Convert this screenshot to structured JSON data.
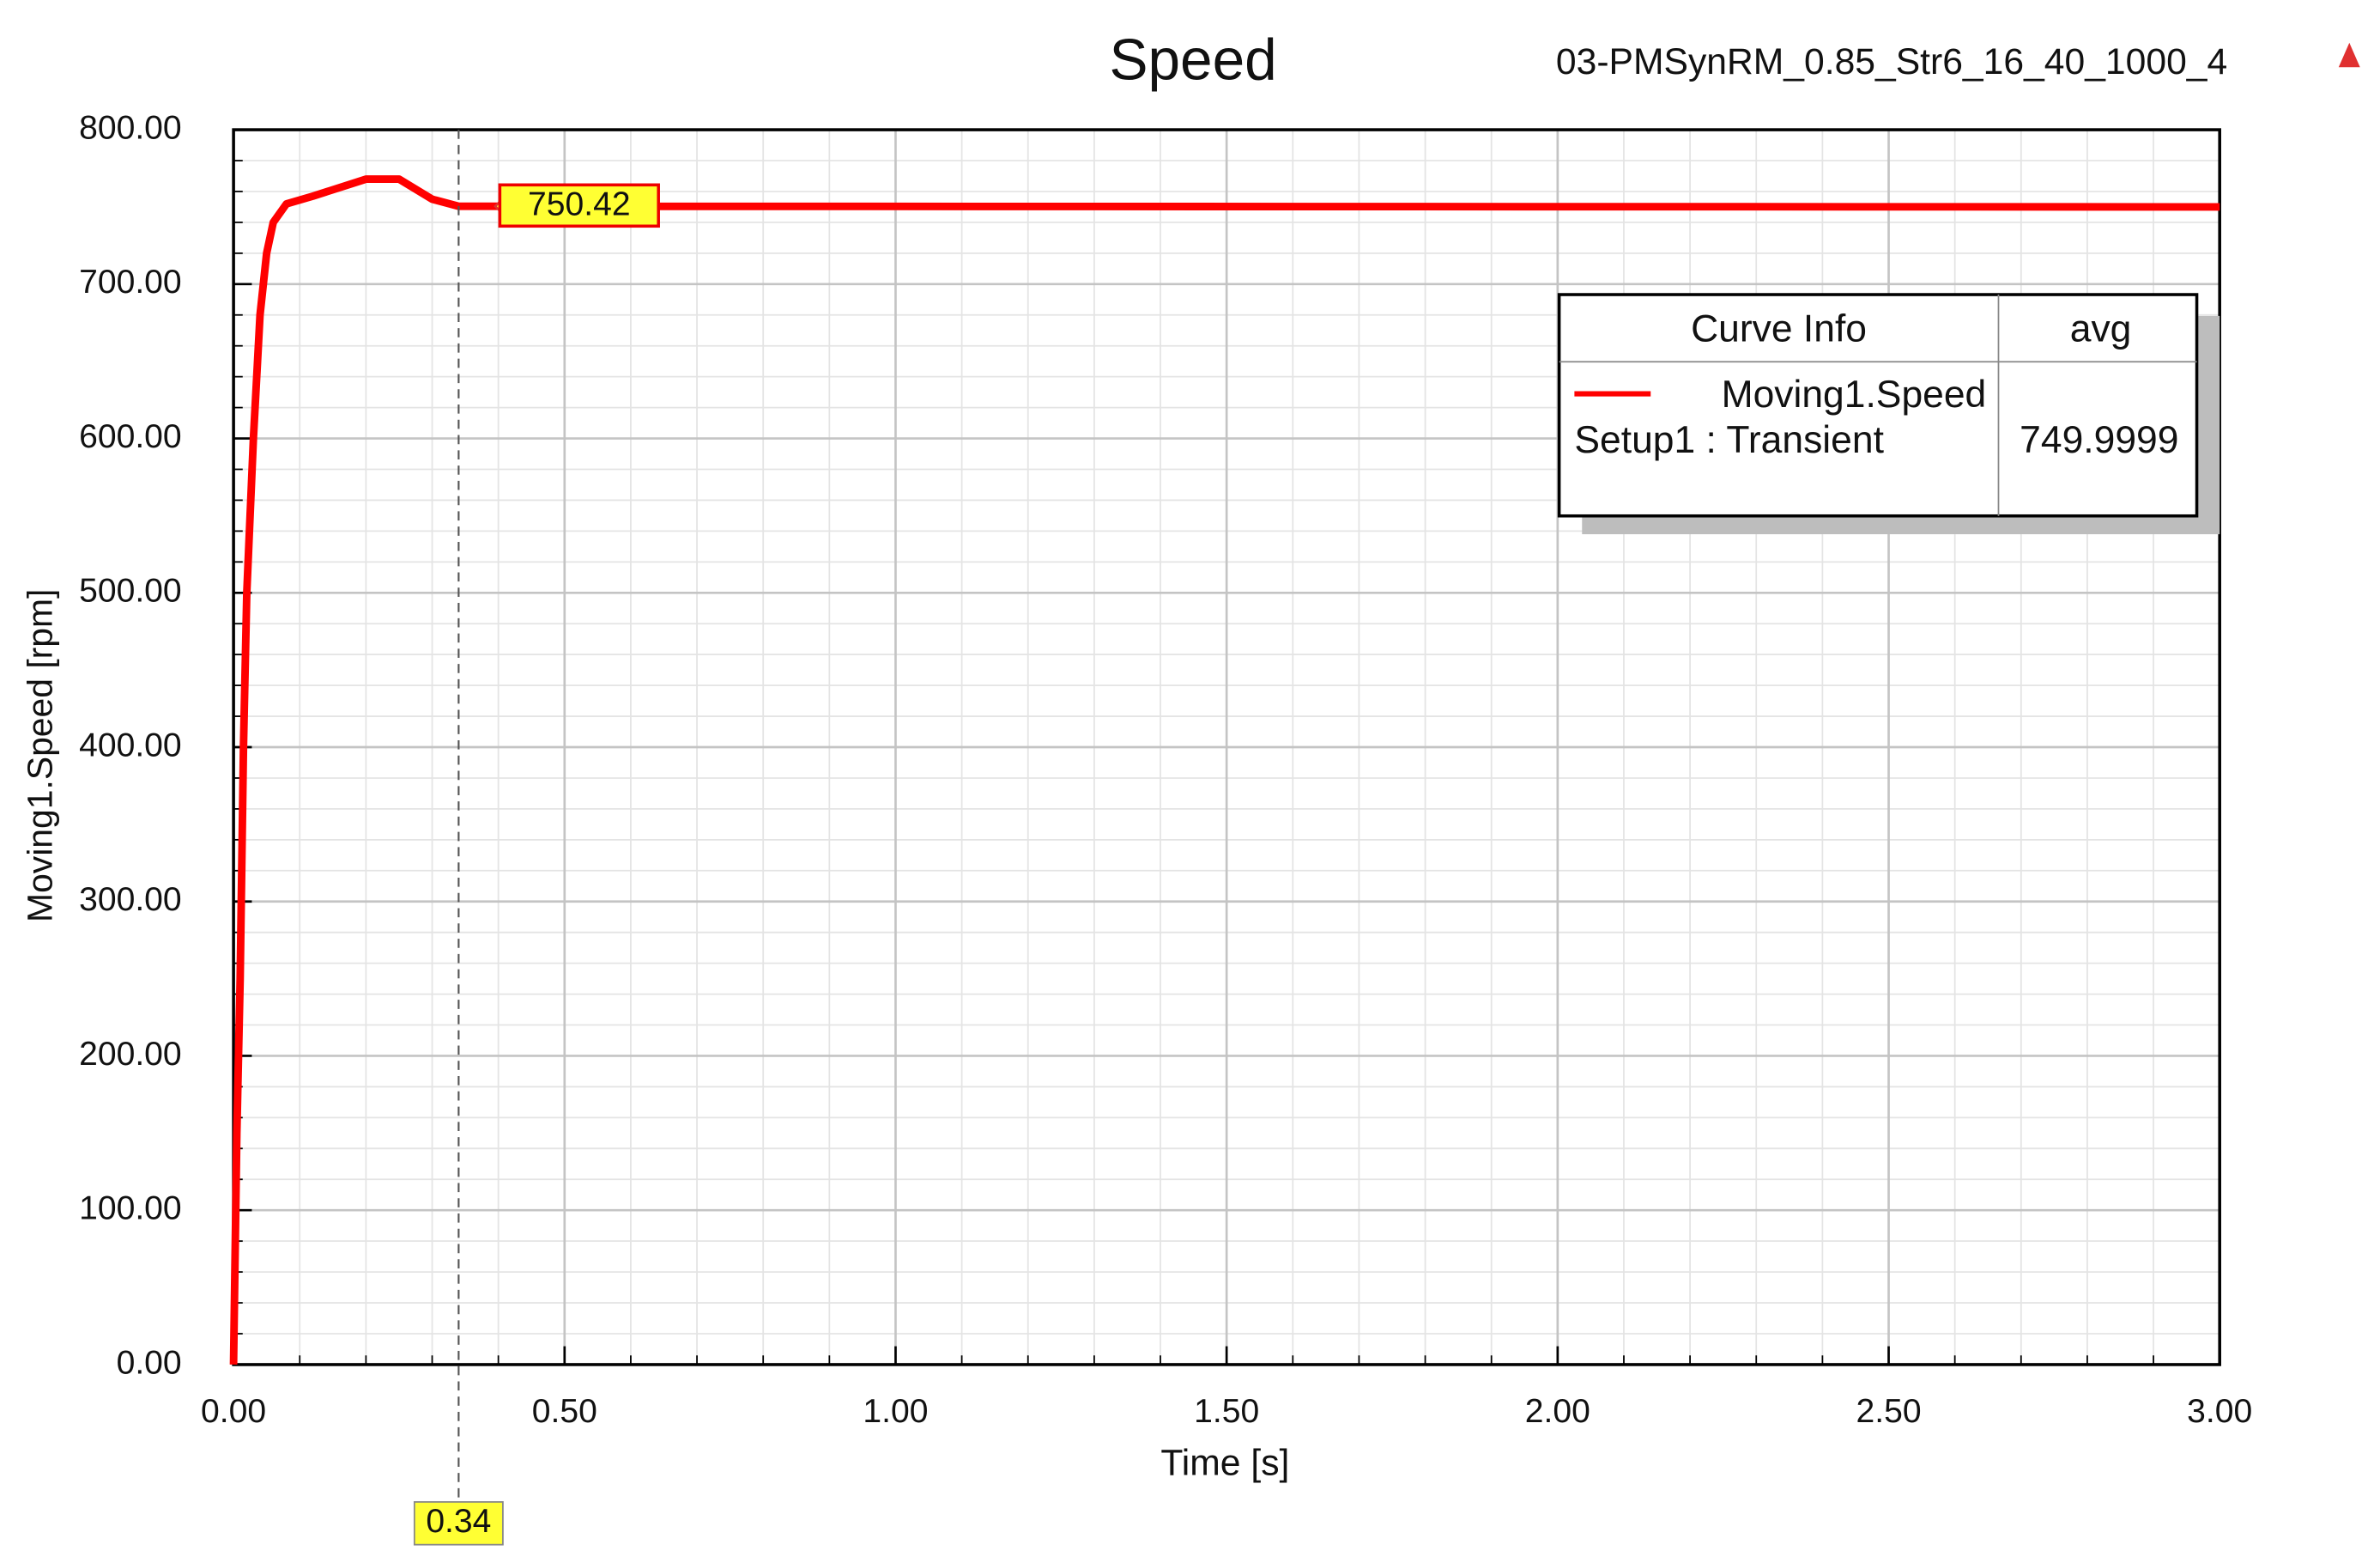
{
  "chart_data": {
    "type": "line",
    "title": "Speed",
    "subtitle": "03-PMSynRM_0.85_Str6_16_40_1000_4",
    "x_label": "Time [s]",
    "y_label": "Moving1.Speed [rpm]",
    "x": [
      0,
      0.005,
      0.01,
      0.015,
      0.02,
      0.03,
      0.04,
      0.05,
      0.06,
      0.08,
      0.12,
      0.2,
      0.25,
      0.3,
      0.34,
      3.0
    ],
    "series": [
      {
        "name": "Moving1.Speed",
        "color": "#ff0000",
        "values": [
          0,
          150,
          250,
          400,
          500,
          600,
          680,
          720,
          740,
          752,
          757,
          768,
          768,
          755,
          750.42,
          750
        ]
      }
    ],
    "legend": {
      "header": "Curve Info",
      "stat_header": "avg",
      "setup": "Setup1 : Transient",
      "stat_value": 749.9999
    },
    "cursor": {
      "x": 0.34,
      "y": 750.42
    },
    "xlim": [
      0,
      3
    ],
    "ylim": [
      0,
      800
    ],
    "xticks": [
      {
        "value": 0,
        "label": "0.00"
      },
      {
        "value": 0.5,
        "label": "0.50"
      },
      {
        "value": 1,
        "label": "1.00"
      },
      {
        "value": 1.5,
        "label": "1.50"
      },
      {
        "value": 2,
        "label": "2.00"
      },
      {
        "value": 2.5,
        "label": "2.50"
      },
      {
        "value": 3,
        "label": "3.00"
      }
    ],
    "yticks": [
      {
        "value": 0,
        "label": "0.00"
      },
      {
        "value": 100,
        "label": "100.00"
      },
      {
        "value": 200,
        "label": "200.00"
      },
      {
        "value": 300,
        "label": "300.00"
      },
      {
        "value": 400,
        "label": "400.00"
      },
      {
        "value": 500,
        "label": "500.00"
      },
      {
        "value": 600,
        "label": "600.00"
      },
      {
        "value": 700,
        "label": "700.00"
      },
      {
        "value": 800,
        "label": "800.00"
      }
    ],
    "minor_xticks": [
      0.1,
      0.2,
      0.3,
      0.4,
      0.6,
      0.7,
      0.8,
      0.9,
      1.1,
      1.2,
      1.3,
      1.4,
      1.6,
      1.7,
      1.8,
      1.9,
      2.1,
      2.2,
      2.3,
      2.4,
      2.6,
      2.7,
      2.8,
      2.9
    ],
    "minor_yticks": [
      20,
      40,
      60,
      80,
      120,
      140,
      160,
      180,
      220,
      240,
      260,
      280,
      320,
      340,
      360,
      380,
      420,
      440,
      460,
      480,
      520,
      540,
      560,
      580,
      620,
      640,
      660,
      680,
      720,
      740,
      760,
      780
    ],
    "grid": true
  }
}
